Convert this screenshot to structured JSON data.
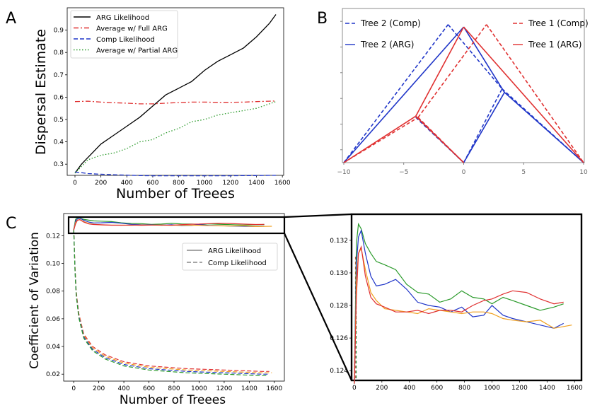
{
  "panels": {
    "a": "A",
    "b": "B",
    "c": "C"
  },
  "colors": {
    "black": "#000000",
    "red": "#e03030",
    "blue": "#1f35c8",
    "green": "#2a9a2a",
    "orange": "#f0a020",
    "grey": "#888888"
  },
  "chart_data": [
    {
      "panel": "A",
      "type": "line",
      "title": "",
      "xlabel": "Number of Treees",
      "ylabel": "Dispersal Estimate",
      "xlim": [
        -60,
        1610
      ],
      "ylim": [
        0.25,
        1.0
      ],
      "xticks": [
        "0",
        "200",
        "400",
        "600",
        "800",
        "1000",
        "1200",
        "1400",
        "1600"
      ],
      "yticks": [
        "0.3",
        "0.4",
        "0.5",
        "0.6",
        "0.7",
        "0.8",
        "0.9"
      ],
      "legend": "top-left",
      "series": [
        {
          "name": "ARG Likelihood",
          "style": "solid",
          "color": "#000000",
          "x": [
            0,
            50,
            100,
            200,
            300,
            400,
            500,
            600,
            700,
            800,
            900,
            1000,
            1100,
            1200,
            1300,
            1400,
            1500,
            1550
          ],
          "y": [
            0.26,
            0.3,
            0.33,
            0.39,
            0.43,
            0.47,
            0.51,
            0.56,
            0.61,
            0.64,
            0.67,
            0.72,
            0.76,
            0.79,
            0.82,
            0.87,
            0.93,
            0.97
          ]
        },
        {
          "name": "Average w/ Full ARG",
          "style": "dashdot",
          "color": "#e03030",
          "x": [
            0,
            100,
            200,
            300,
            400,
            500,
            600,
            700,
            800,
            900,
            1000,
            1100,
            1200,
            1300,
            1400,
            1500,
            1550
          ],
          "y": [
            0.58,
            0.582,
            0.578,
            0.575,
            0.573,
            0.57,
            0.57,
            0.573,
            0.576,
            0.578,
            0.578,
            0.577,
            0.577,
            0.578,
            0.58,
            0.582,
            0.583
          ]
        },
        {
          "name": "Comp Likelihood",
          "style": "dashed",
          "color": "#1f35c8",
          "x": [
            0,
            50,
            100,
            200,
            300,
            400,
            500,
            600,
            700,
            800,
            900,
            1000,
            1100,
            1200,
            1300,
            1400,
            1500,
            1550
          ],
          "y": [
            0.265,
            0.262,
            0.258,
            0.255,
            0.253,
            0.251,
            0.249,
            0.248,
            0.248,
            0.248,
            0.248,
            0.248,
            0.248,
            0.248,
            0.249,
            0.249,
            0.25,
            0.25
          ]
        },
        {
          "name": "Average w/ Partial ARG",
          "style": "dotted",
          "color": "#2a9a2a",
          "x": [
            0,
            50,
            100,
            200,
            300,
            400,
            500,
            600,
            700,
            800,
            900,
            1000,
            1100,
            1200,
            1300,
            1400,
            1500,
            1550
          ],
          "y": [
            0.26,
            0.29,
            0.32,
            0.34,
            0.35,
            0.37,
            0.4,
            0.41,
            0.44,
            0.46,
            0.49,
            0.5,
            0.52,
            0.53,
            0.54,
            0.55,
            0.57,
            0.58
          ]
        }
      ]
    },
    {
      "panel": "B",
      "type": "line",
      "title": "",
      "xlim": [
        -10,
        10
      ],
      "xticks": [
        "−10",
        "−5",
        "0",
        "5",
        "10"
      ],
      "ylim": [
        0,
        6
      ],
      "legend": "top-left and top-right",
      "series": [
        {
          "name": "Tree 2 (Comp)",
          "style": "dashed",
          "color": "#1f35c8",
          "segments": [
            [
              [
                -10,
                0
              ],
              [
                -1.3,
                5.8
              ]
            ],
            [
              [
                -1.3,
                5.8
              ],
              [
                3.2,
                3.1
              ]
            ],
            [
              [
                3.2,
                3.1
              ],
              [
                10,
                0
              ]
            ],
            [
              [
                -4,
                1.9
              ],
              [
                0,
                0
              ]
            ],
            [
              [
                0,
                0
              ],
              [
                3.2,
                3.1
              ]
            ]
          ]
        },
        {
          "name": "Tree 2 (ARG)",
          "style": "solid",
          "color": "#1f35c8",
          "segments": [
            [
              [
                -10,
                0
              ],
              [
                0,
                5.7
              ]
            ],
            [
              [
                0,
                5.7
              ],
              [
                3.4,
                2.95
              ]
            ],
            [
              [
                3.4,
                2.95
              ],
              [
                10,
                0
              ]
            ],
            [
              [
                -4,
                1.95
              ],
              [
                0,
                0
              ]
            ],
            [
              [
                0,
                0
              ],
              [
                3.4,
                2.95
              ]
            ]
          ]
        },
        {
          "name": "Tree 1 (Comp)",
          "style": "dashed",
          "color": "#e03030",
          "segments": [
            [
              [
                -10,
                0
              ],
              [
                -3.8,
                1.9
              ]
            ],
            [
              [
                -3.8,
                1.9
              ],
              [
                1.9,
                5.8
              ]
            ],
            [
              [
                1.9,
                5.8
              ],
              [
                10,
                0
              ]
            ],
            [
              [
                -3.8,
                1.9
              ],
              [
                0,
                0
              ]
            ]
          ]
        },
        {
          "name": "Tree 1 (ARG)",
          "style": "solid",
          "color": "#e03030",
          "segments": [
            [
              [
                -10,
                0
              ],
              [
                -4,
                1.95
              ]
            ],
            [
              [
                -4,
                1.95
              ],
              [
                0,
                5.7
              ]
            ],
            [
              [
                0,
                5.7
              ],
              [
                10,
                0
              ]
            ],
            [
              [
                -4,
                1.95
              ],
              [
                0,
                0
              ]
            ]
          ]
        }
      ]
    },
    {
      "panel": "C",
      "type": "line",
      "title": "",
      "xlabel": "Number of Treees",
      "ylabel": "Coefficient of Variation",
      "xlim": [
        -80,
        1680
      ],
      "ylim": [
        0.015,
        0.136
      ],
      "xticks": [
        "0",
        "200",
        "400",
        "600",
        "800",
        "1000",
        "1200",
        "1400",
        "1600"
      ],
      "yticks": [
        "0.02",
        "0.04",
        "0.06",
        "0.08",
        "0.10",
        "0.12"
      ],
      "legend": "right",
      "legend_entries": [
        {
          "name": "ARG Likelihood",
          "style": "solid",
          "color": "#888888"
        },
        {
          "name": "Comp Likelihood",
          "style": "dashed",
          "color": "#888888"
        }
      ],
      "comp_runs": [
        {
          "color": "#e03030",
          "x": [
            0,
            10,
            20,
            40,
            80,
            150,
            250,
            400,
            600,
            900,
            1200,
            1500,
            1560
          ],
          "y": [
            0.125,
            0.098,
            0.08,
            0.064,
            0.049,
            0.04,
            0.034,
            0.029,
            0.026,
            0.024,
            0.023,
            0.022,
            0.022
          ]
        },
        {
          "color": "#f0a020",
          "x": [
            0,
            10,
            20,
            40,
            80,
            150,
            250,
            400,
            600,
            900,
            1200,
            1500,
            1580
          ],
          "y": [
            0.125,
            0.097,
            0.079,
            0.063,
            0.048,
            0.039,
            0.033,
            0.028,
            0.025,
            0.023,
            0.022,
            0.021,
            0.021
          ]
        },
        {
          "color": "#1f35c8",
          "x": [
            0,
            10,
            20,
            40,
            80,
            150,
            250,
            400,
            600,
            900,
            1200,
            1500,
            1550
          ],
          "y": [
            0.125,
            0.096,
            0.078,
            0.062,
            0.047,
            0.038,
            0.032,
            0.027,
            0.024,
            0.022,
            0.021,
            0.02,
            0.02
          ]
        },
        {
          "color": "#2a9a2a",
          "x": [
            0,
            10,
            20,
            40,
            80,
            150,
            250,
            400,
            600,
            900,
            1200,
            1500,
            1540
          ],
          "y": [
            0.125,
            0.095,
            0.077,
            0.061,
            0.046,
            0.037,
            0.031,
            0.026,
            0.023,
            0.021,
            0.02,
            0.019,
            0.019
          ]
        }
      ]
    },
    {
      "panel": "C-zoom",
      "type": "line",
      "title": "",
      "xlim": [
        -20,
        1650
      ],
      "ylim": [
        0.1234,
        0.1336
      ],
      "xticks": [
        "0",
        "200",
        "400",
        "600",
        "800",
        "1000",
        "1200",
        "1400",
        "1600"
      ],
      "yticks": [
        "0.124",
        "0.126",
        "0.128",
        "0.130",
        "0.132"
      ],
      "arg_runs": [
        {
          "color": "#2a9a2a",
          "x": [
            0,
            15,
            30,
            50,
            80,
            120,
            160,
            220,
            300,
            380,
            460,
            540,
            620,
            700,
            780,
            860,
            940,
            1000,
            1080,
            1150,
            1250,
            1350,
            1450,
            1520
          ],
          "y": [
            0.1232,
            0.1318,
            0.133,
            0.1327,
            0.1318,
            0.1312,
            0.1307,
            0.1305,
            0.1302,
            0.1293,
            0.1288,
            0.1287,
            0.1282,
            0.1284,
            0.1289,
            0.1285,
            0.1284,
            0.1281,
            0.1285,
            0.1283,
            0.128,
            0.1277,
            0.1279,
            0.1281
          ]
        },
        {
          "color": "#1f35c8",
          "x": [
            0,
            15,
            30,
            50,
            80,
            120,
            160,
            220,
            300,
            380,
            460,
            540,
            620,
            700,
            780,
            860,
            940,
            1000,
            1080,
            1150,
            1250,
            1350,
            1450,
            1520
          ],
          "y": [
            0.1232,
            0.1305,
            0.1322,
            0.1326,
            0.1312,
            0.1298,
            0.1292,
            0.1293,
            0.1296,
            0.129,
            0.1282,
            0.128,
            0.1279,
            0.1276,
            0.1279,
            0.1273,
            0.1274,
            0.128,
            0.1274,
            0.1272,
            0.127,
            0.1268,
            0.1266,
            0.1269
          ]
        },
        {
          "color": "#f0a020",
          "x": [
            0,
            15,
            30,
            50,
            80,
            120,
            160,
            220,
            300,
            380,
            460,
            540,
            620,
            700,
            780,
            860,
            940,
            1000,
            1080,
            1150,
            1250,
            1350,
            1450,
            1580
          ],
          "y": [
            0.1232,
            0.1295,
            0.1312,
            0.1315,
            0.1302,
            0.1288,
            0.1283,
            0.1278,
            0.1277,
            0.1276,
            0.1275,
            0.1278,
            0.1277,
            0.1276,
            0.1275,
            0.1276,
            0.1276,
            0.1275,
            0.1272,
            0.1271,
            0.127,
            0.1271,
            0.1266,
            0.1268
          ]
        },
        {
          "color": "#e03030",
          "x": [
            0,
            15,
            30,
            50,
            80,
            120,
            160,
            220,
            300,
            380,
            460,
            540,
            620,
            700,
            780,
            860,
            940,
            1000,
            1080,
            1150,
            1250,
            1350,
            1450,
            1520
          ],
          "y": [
            0.1232,
            0.1285,
            0.1312,
            0.1316,
            0.1298,
            0.1285,
            0.1281,
            0.1279,
            0.1276,
            0.1276,
            0.1277,
            0.1275,
            0.1277,
            0.1277,
            0.1276,
            0.128,
            0.1283,
            0.1284,
            0.1287,
            0.1289,
            0.1288,
            0.1284,
            0.1281,
            0.1282
          ]
        }
      ]
    }
  ]
}
